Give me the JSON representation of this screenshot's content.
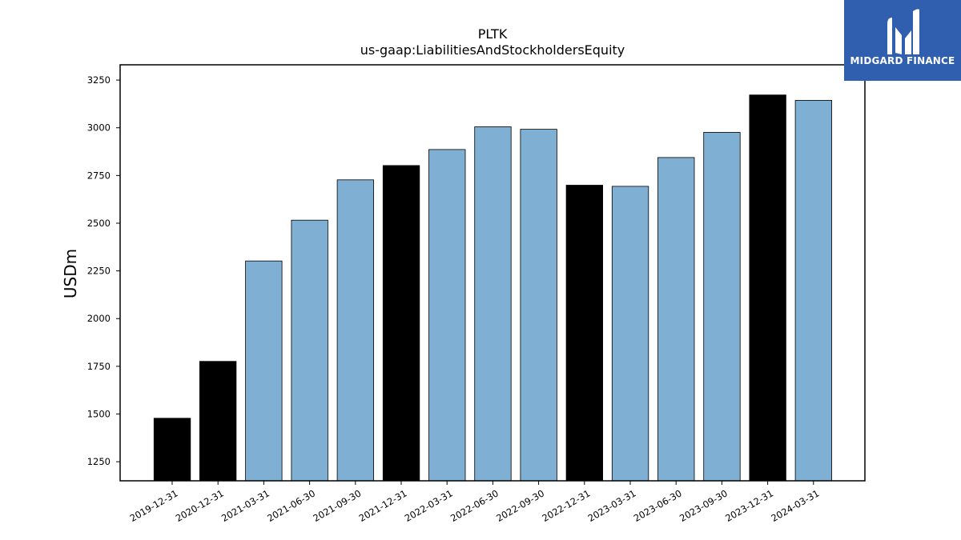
{
  "brand": {
    "name": "MIDGARD FINANCE"
  },
  "colors": {
    "annual": "#000000",
    "quarterly": "#7fb0d3",
    "logo_bg": "#2f5fae"
  },
  "chart_data": {
    "type": "bar",
    "title": "PLTK",
    "subtitle": "us-gaap:LiabilitiesAndStockholdersEquity",
    "xlabel": "",
    "ylabel": "USDm",
    "ylim": [
      1150,
      3330
    ],
    "yticks": [
      1250,
      1500,
      1750,
      2000,
      2250,
      2500,
      2750,
      3000,
      3250
    ],
    "grid": false,
    "categories": [
      "2019-12-31",
      "2020-12-31",
      "2021-03-31",
      "2021-06-30",
      "2021-09-30",
      "2021-12-31",
      "2022-03-31",
      "2022-06-30",
      "2022-09-30",
      "2022-12-31",
      "2023-03-31",
      "2023-06-30",
      "2023-09-30",
      "2023-12-31",
      "2024-03-31"
    ],
    "values": [
      1478,
      1776,
      2302,
      2516,
      2727,
      2802,
      2886,
      3005,
      2992,
      2699,
      2693,
      2844,
      2976,
      3172,
      3144
    ],
    "bar_colors": [
      "annual",
      "annual",
      "quarterly",
      "quarterly",
      "quarterly",
      "annual",
      "quarterly",
      "quarterly",
      "quarterly",
      "annual",
      "quarterly",
      "quarterly",
      "quarterly",
      "annual",
      "quarterly"
    ]
  }
}
